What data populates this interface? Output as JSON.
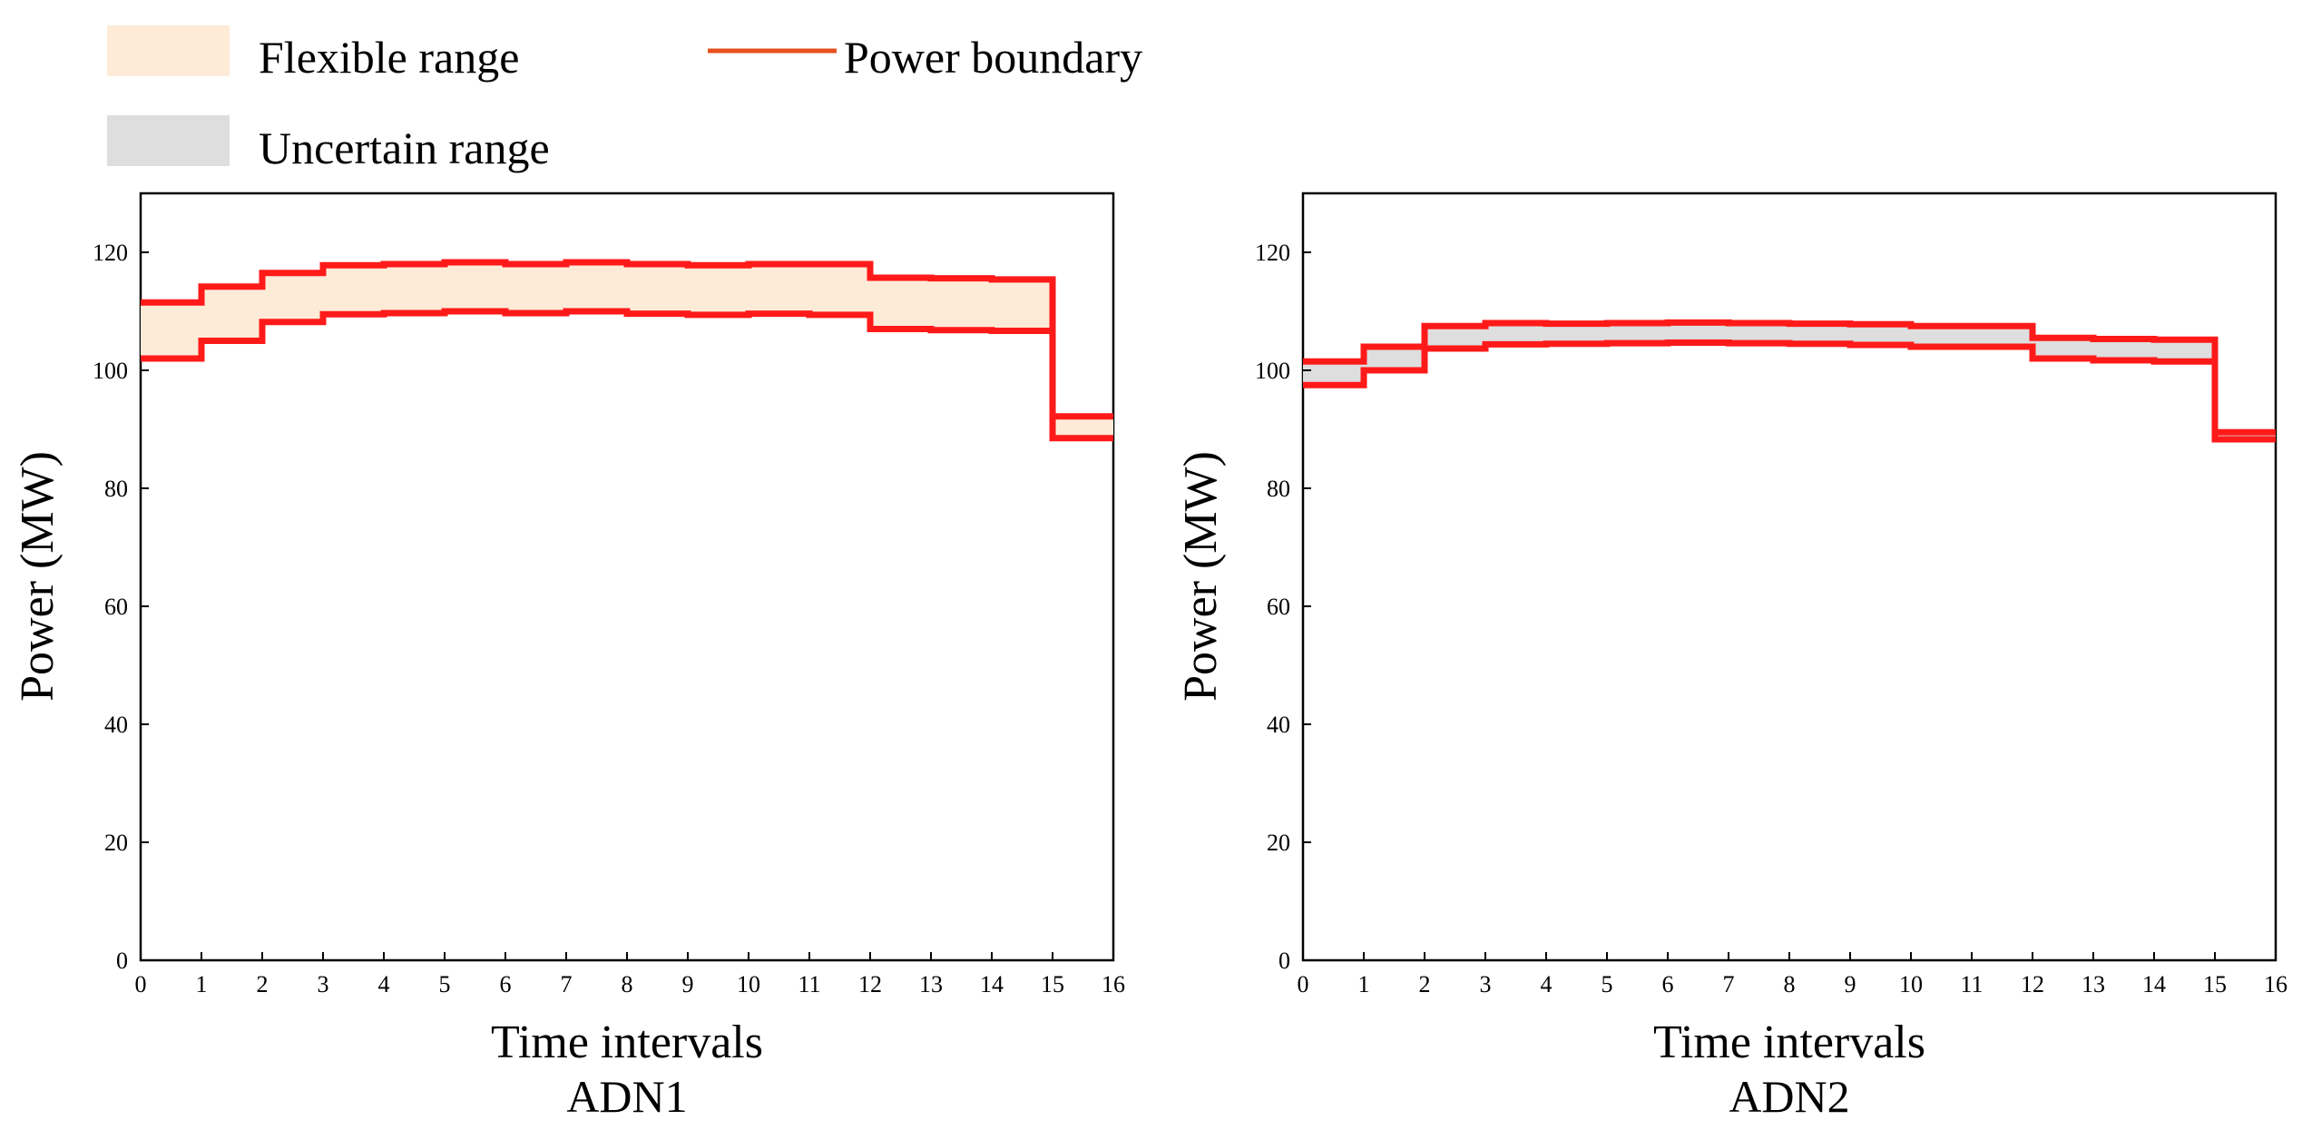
{
  "legend": {
    "flexible": {
      "label": "Flexible  range",
      "color": "#FDEBD8"
    },
    "uncertain": {
      "label": "Uncertain range",
      "color": "#DEDEDE"
    },
    "boundary": {
      "label": "Power boundary",
      "color": "#E8501E"
    }
  },
  "chart_data": [
    {
      "type": "area",
      "step": true,
      "title": "ADN1",
      "xlabel": "Time intervals",
      "ylabel": "Power (MW)",
      "xlim": [
        0,
        16
      ],
      "ylim": [
        0,
        130
      ],
      "xticks": [
        0,
        1,
        2,
        3,
        4,
        5,
        6,
        7,
        8,
        9,
        10,
        11,
        12,
        13,
        14,
        15,
        16
      ],
      "yticks": [
        0,
        20,
        40,
        60,
        80,
        100,
        120
      ],
      "fill_series": "Flexible range",
      "fill_color": "#FDEBD8",
      "boundary_color": "#FF1A1A",
      "intervals": [
        0,
        1,
        2,
        3,
        4,
        5,
        6,
        7,
        8,
        9,
        10,
        11,
        12,
        13,
        14,
        15
      ],
      "upper": [
        111.5,
        114.2,
        116.5,
        117.8,
        118.0,
        118.3,
        118.0,
        118.3,
        118.0,
        117.8,
        118.0,
        118.0,
        115.7,
        115.6,
        115.4,
        92.2
      ],
      "lower": [
        102.0,
        105.0,
        108.2,
        109.5,
        109.7,
        110.0,
        109.7,
        110.0,
        109.6,
        109.4,
        109.6,
        109.4,
        107.0,
        106.8,
        106.7,
        88.5
      ]
    },
    {
      "type": "area",
      "step": true,
      "title": "ADN2",
      "xlabel": "Time intervals",
      "ylabel": "Power (MW)",
      "xlim": [
        0,
        16
      ],
      "ylim": [
        0,
        130
      ],
      "xticks": [
        0,
        1,
        2,
        3,
        4,
        5,
        6,
        7,
        8,
        9,
        10,
        11,
        12,
        13,
        14,
        15,
        16
      ],
      "yticks": [
        0,
        20,
        40,
        60,
        80,
        100,
        120
      ],
      "fill_series": "Uncertain range",
      "fill_color": "#DEDEDE",
      "boundary_color": "#FF1A1A",
      "intervals": [
        0,
        1,
        2,
        3,
        4,
        5,
        6,
        7,
        8,
        9,
        10,
        11,
        12,
        13,
        14,
        15
      ],
      "upper": [
        101.5,
        104.0,
        107.5,
        108.0,
        107.9,
        108.0,
        108.1,
        108.0,
        107.9,
        107.8,
        107.5,
        107.5,
        105.5,
        105.3,
        105.2,
        89.5
      ],
      "lower": [
        97.5,
        100.0,
        103.7,
        104.4,
        104.5,
        104.6,
        104.7,
        104.6,
        104.5,
        104.3,
        104.0,
        104.0,
        102.0,
        101.7,
        101.5,
        88.3
      ]
    }
  ]
}
